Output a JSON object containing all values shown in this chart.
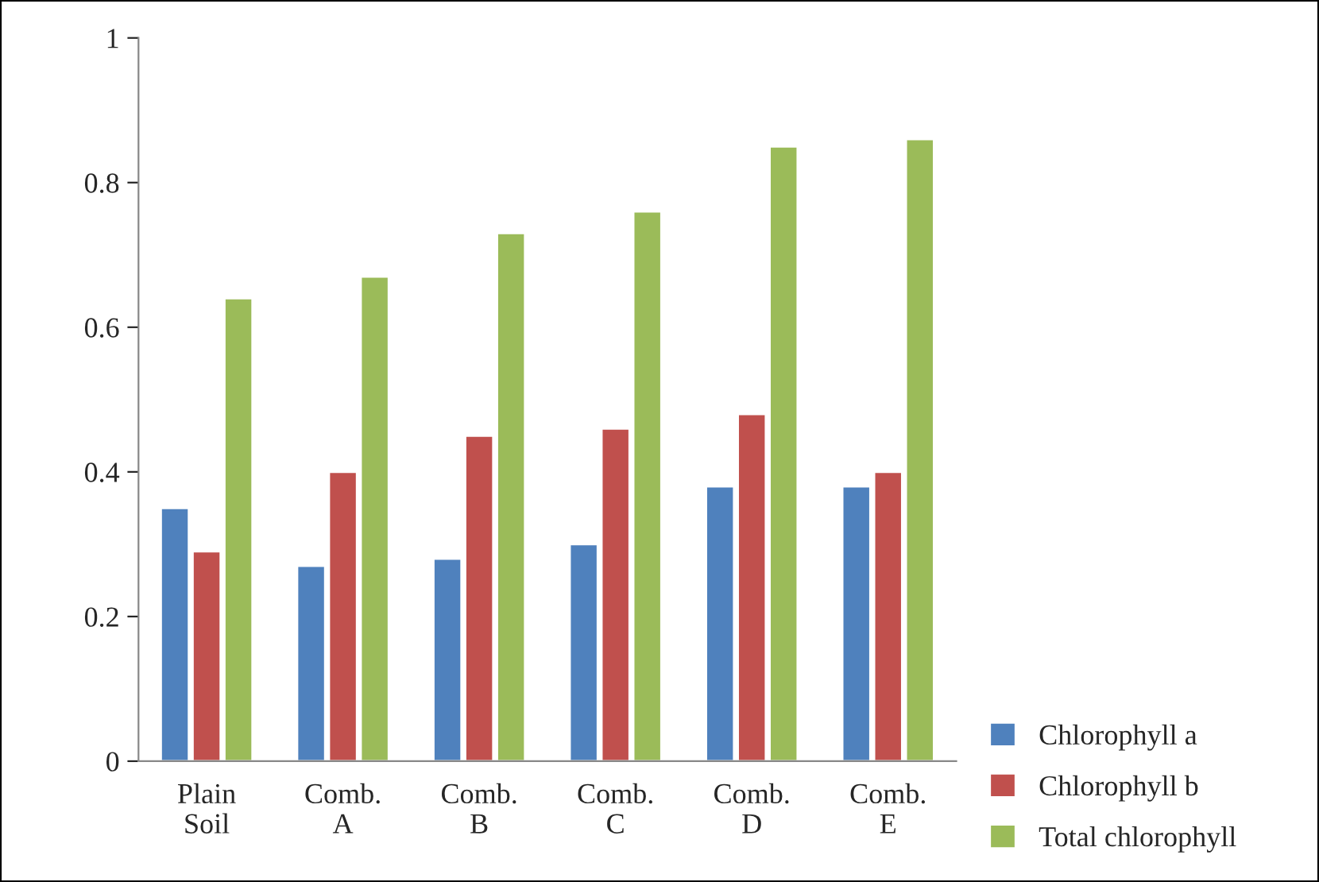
{
  "chart_data": {
    "type": "bar",
    "categories": [
      "Plain\nSoil",
      "Comb.\nA",
      "Comb.\nB",
      "Comb.\nC",
      "Comb.\nD",
      "Comb.\nE"
    ],
    "series": [
      {
        "name": "Chlorophyll a",
        "color": "#4f81bd",
        "values": [
          0.35,
          0.27,
          0.28,
          0.3,
          0.38,
          0.38
        ]
      },
      {
        "name": "Chlorophyll b",
        "color": "#c0504d",
        "values": [
          0.29,
          0.4,
          0.45,
          0.46,
          0.48,
          0.4
        ]
      },
      {
        "name": "Total chlorophyll",
        "color": "#9bbb59",
        "values": [
          0.64,
          0.67,
          0.73,
          0.76,
          0.85,
          0.86
        ]
      }
    ],
    "ylim": [
      0,
      1
    ],
    "yticks": [
      0,
      0.2,
      0.4,
      0.6,
      0.8,
      1
    ],
    "grid": false,
    "legend": "bottom right"
  }
}
